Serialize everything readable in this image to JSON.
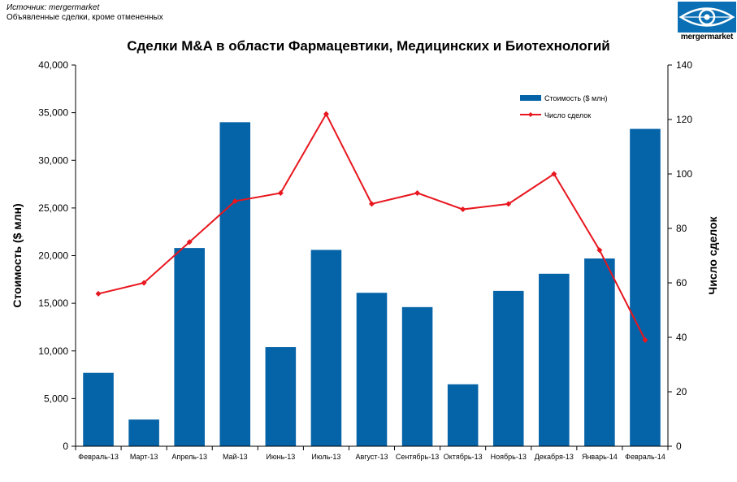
{
  "header": {
    "source": "Источник: mergermarket",
    "note": "Объявленные сделки, кроме отмененных",
    "logo_text": "mergermarket"
  },
  "colors": {
    "bar": "#0563A8",
    "line": "#E8161E",
    "logo": "#0A6FB4"
  },
  "chart_data": {
    "type": "bar",
    "title": "Сделки M&A в области Фармацевтики, Медицинских и Биотехнологий",
    "categories": [
      "Февраль-13",
      "Март-13",
      "Апрель-13",
      "Май-13",
      "Июнь-13",
      "Июль-13",
      "Август-13",
      "Сентябрь-13",
      "Октябрь-13",
      "Ноябрь-13",
      "Декабря-13",
      "Январь-14",
      "Февраль-14"
    ],
    "series": [
      {
        "name": "Стоимость ($ млн)",
        "type": "bar",
        "axis": "left",
        "values": [
          7700,
          2800,
          20800,
          34000,
          10400,
          20600,
          16100,
          14600,
          6500,
          16300,
          18100,
          19700,
          33300
        ]
      },
      {
        "name": "Число сделок",
        "type": "line",
        "axis": "right",
        "values": [
          56,
          60,
          75,
          90,
          93,
          122,
          89,
          93,
          87,
          89,
          100,
          72,
          39
        ]
      }
    ],
    "ylabel": "Стоимость ($ млн)",
    "ylabel_right": "Число сделок",
    "ylim": [
      0,
      40000
    ],
    "ylim_right": [
      0,
      140
    ],
    "yticks": [
      "0",
      "5,000",
      "10,000",
      "15,000",
      "20,000",
      "25,000",
      "30,000",
      "35,000",
      "40,000"
    ],
    "yticks_right": [
      "0",
      "20",
      "40",
      "60",
      "80",
      "100",
      "120",
      "140"
    ],
    "legend_position": "top-right",
    "grid": false
  }
}
